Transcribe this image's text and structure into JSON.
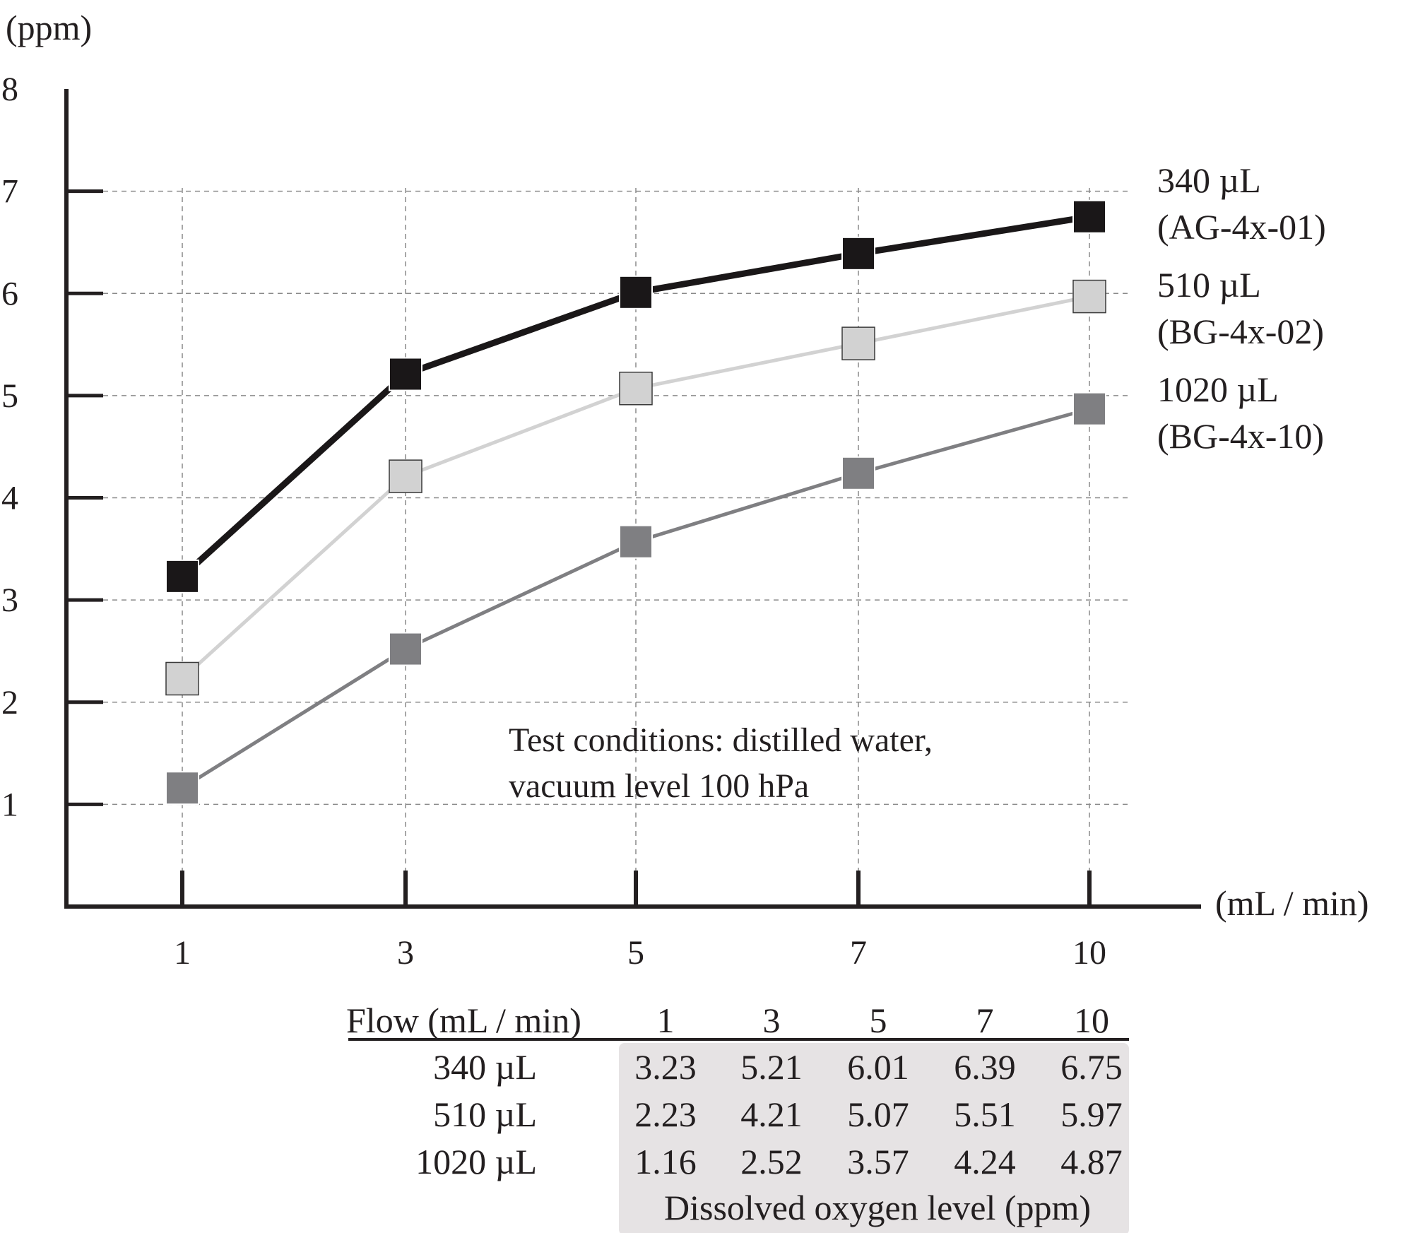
{
  "chart_data": {
    "type": "line",
    "ylabel": "(ppm)",
    "xlabel": "(mL / min)",
    "ylim": [
      0,
      8
    ],
    "yticks": [
      1,
      2,
      3,
      4,
      5,
      6,
      7,
      8
    ],
    "categories": [
      "1",
      "3",
      "5",
      "7",
      "10"
    ],
    "grid": true,
    "legend_position": "right",
    "series": [
      {
        "name": "340 µL",
        "model": "(AG-4x-01)",
        "color": "#1a1718",
        "values": [
          3.23,
          5.21,
          6.01,
          6.39,
          6.75
        ]
      },
      {
        "name": "510 µL",
        "model": "(BG-4x-02)",
        "color": "#d2d2d2",
        "values": [
          2.23,
          4.21,
          5.07,
          5.51,
          5.97
        ]
      },
      {
        "name": "1020 µL",
        "model": "(BG-4x-10)",
        "color": "#7f7f82",
        "values": [
          1.16,
          2.52,
          3.57,
          4.24,
          4.87
        ]
      }
    ],
    "annotation": [
      "Test conditions: distilled water,",
      "vacuum level 100 hPa"
    ]
  },
  "table": {
    "header": "Flow (mL / min)",
    "columns": [
      "1",
      "3",
      "5",
      "7",
      "10"
    ],
    "rows": [
      {
        "label": "340 µL",
        "values": [
          "3.23",
          "5.21",
          "6.01",
          "6.39",
          "6.75"
        ]
      },
      {
        "label": "510 µL",
        "values": [
          "2.23",
          "4.21",
          "5.07",
          "5.51",
          "5.97"
        ]
      },
      {
        "label": "1020 µL",
        "values": [
          "1.16",
          "2.52",
          "3.57",
          "4.24",
          "4.87"
        ]
      }
    ],
    "footer": "Dissolved oxygen level (ppm)"
  }
}
